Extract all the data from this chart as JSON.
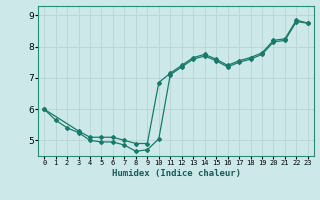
{
  "xlabel": "Humidex (Indice chaleur)",
  "bg_color": "#cce8e8",
  "grid_color": "#b8d4d4",
  "line_color": "#1a7a6a",
  "marker_color": "#1a7a6a",
  "xlim": [
    -0.5,
    23.5
  ],
  "ylim": [
    4.5,
    9.3
  ],
  "yticks": [
    5,
    6,
    7,
    8,
    9
  ],
  "xticks": [
    0,
    1,
    2,
    3,
    4,
    5,
    6,
    7,
    8,
    9,
    10,
    11,
    12,
    13,
    14,
    15,
    16,
    17,
    18,
    19,
    20,
    21,
    22,
    23
  ],
  "series1_x": [
    0,
    1,
    2,
    3,
    4,
    5,
    6,
    7,
    8,
    9,
    10,
    11,
    12,
    13,
    14,
    15,
    16,
    17,
    18,
    19,
    20,
    21,
    22,
    23
  ],
  "series1_y": [
    6.0,
    5.65,
    5.4,
    5.25,
    5.0,
    4.95,
    4.95,
    4.85,
    4.65,
    4.7,
    5.05,
    7.1,
    7.35,
    7.6,
    7.7,
    7.55,
    7.35,
    7.5,
    7.6,
    7.75,
    8.15,
    8.2,
    8.8,
    8.75
  ],
  "series2_x": [
    0,
    3,
    4,
    5,
    6,
    7,
    8,
    9,
    10,
    11,
    12,
    13,
    14,
    15,
    16,
    17,
    18,
    19,
    20,
    21,
    22,
    23
  ],
  "series2_y": [
    6.0,
    5.3,
    5.1,
    5.1,
    5.1,
    5.0,
    4.9,
    4.9,
    6.85,
    7.15,
    7.4,
    7.65,
    7.75,
    7.6,
    7.4,
    7.55,
    7.65,
    7.8,
    8.2,
    8.25,
    8.85,
    8.75
  ]
}
